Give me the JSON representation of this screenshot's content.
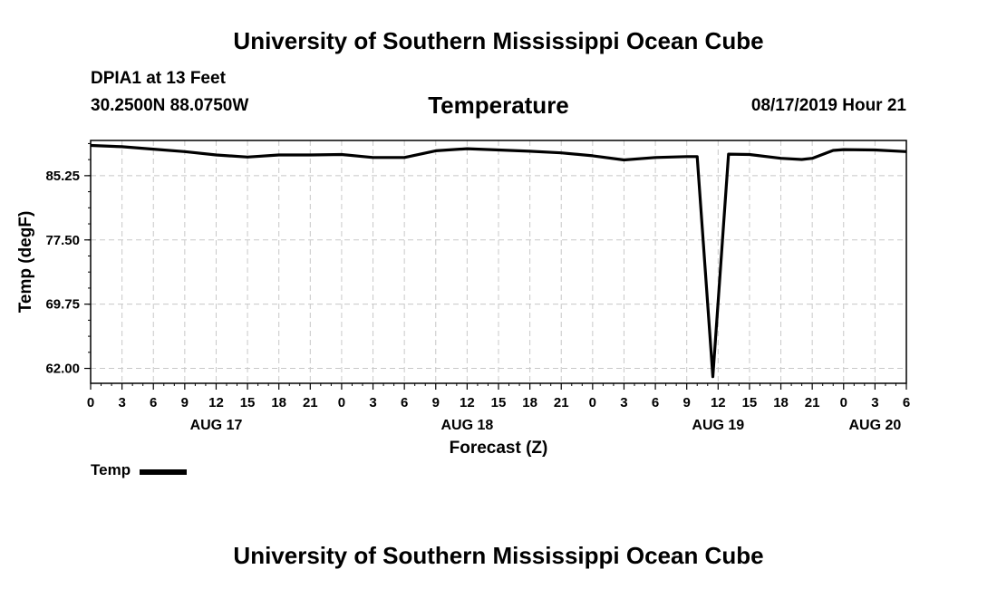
{
  "header": {
    "title": "University of Southern Mississippi Ocean Cube",
    "station": "DPIA1 at 13 Feet",
    "coords": "30.2500N 88.0750W",
    "variable": "Temperature",
    "datetime": "08/17/2019 Hour 21"
  },
  "footer": {
    "title": "University of Southern Mississippi Ocean Cube"
  },
  "legend": {
    "label": "Temp",
    "color": "#000000"
  },
  "chart_data": {
    "type": "line",
    "title": "Temperature",
    "xlabel": "Forecast (Z)",
    "ylabel": "Temp (degF)",
    "xlim": [
      0,
      78
    ],
    "ylim": [
      60.2,
      89.5
    ],
    "yticks": [
      62.0,
      69.75,
      77.5,
      85.25
    ],
    "ytick_labels": [
      "62.00",
      "69.75",
      "77.50",
      "85.25"
    ],
    "xticks": [
      0,
      3,
      6,
      9,
      12,
      15,
      18,
      21,
      24,
      27,
      30,
      33,
      36,
      39,
      42,
      45,
      48,
      51,
      54,
      57,
      60,
      63,
      66,
      69,
      72,
      75,
      78
    ],
    "xtick_labels": [
      "0",
      "3",
      "6",
      "9",
      "12",
      "15",
      "18",
      "21",
      "0",
      "3",
      "6",
      "9",
      "12",
      "15",
      "18",
      "21",
      "0",
      "3",
      "6",
      "9",
      "12",
      "15",
      "18",
      "21",
      "0",
      "3",
      "6"
    ],
    "date_labels": [
      {
        "label": "AUG 17",
        "x": 12
      },
      {
        "label": "AUG 18",
        "x": 36
      },
      {
        "label": "AUG 19",
        "x": 60
      },
      {
        "label": "AUG 20",
        "x": 75
      }
    ],
    "grid": true,
    "series": [
      {
        "name": "Temp",
        "color": "#000000",
        "x": [
          0,
          3,
          6,
          9,
          12,
          15,
          18,
          21,
          24,
          27,
          30,
          33,
          36,
          39,
          42,
          45,
          48,
          51,
          54,
          57,
          58,
          59.5,
          61,
          63,
          66,
          68,
          69,
          71,
          72,
          75,
          78
        ],
        "y": [
          88.9,
          88.75,
          88.45,
          88.15,
          87.75,
          87.5,
          87.75,
          87.75,
          87.8,
          87.45,
          87.45,
          88.25,
          88.5,
          88.35,
          88.2,
          88.0,
          87.65,
          87.15,
          87.45,
          87.55,
          87.55,
          61.0,
          87.85,
          87.8,
          87.35,
          87.2,
          87.35,
          88.3,
          88.4,
          88.35,
          88.15
        ]
      }
    ]
  }
}
